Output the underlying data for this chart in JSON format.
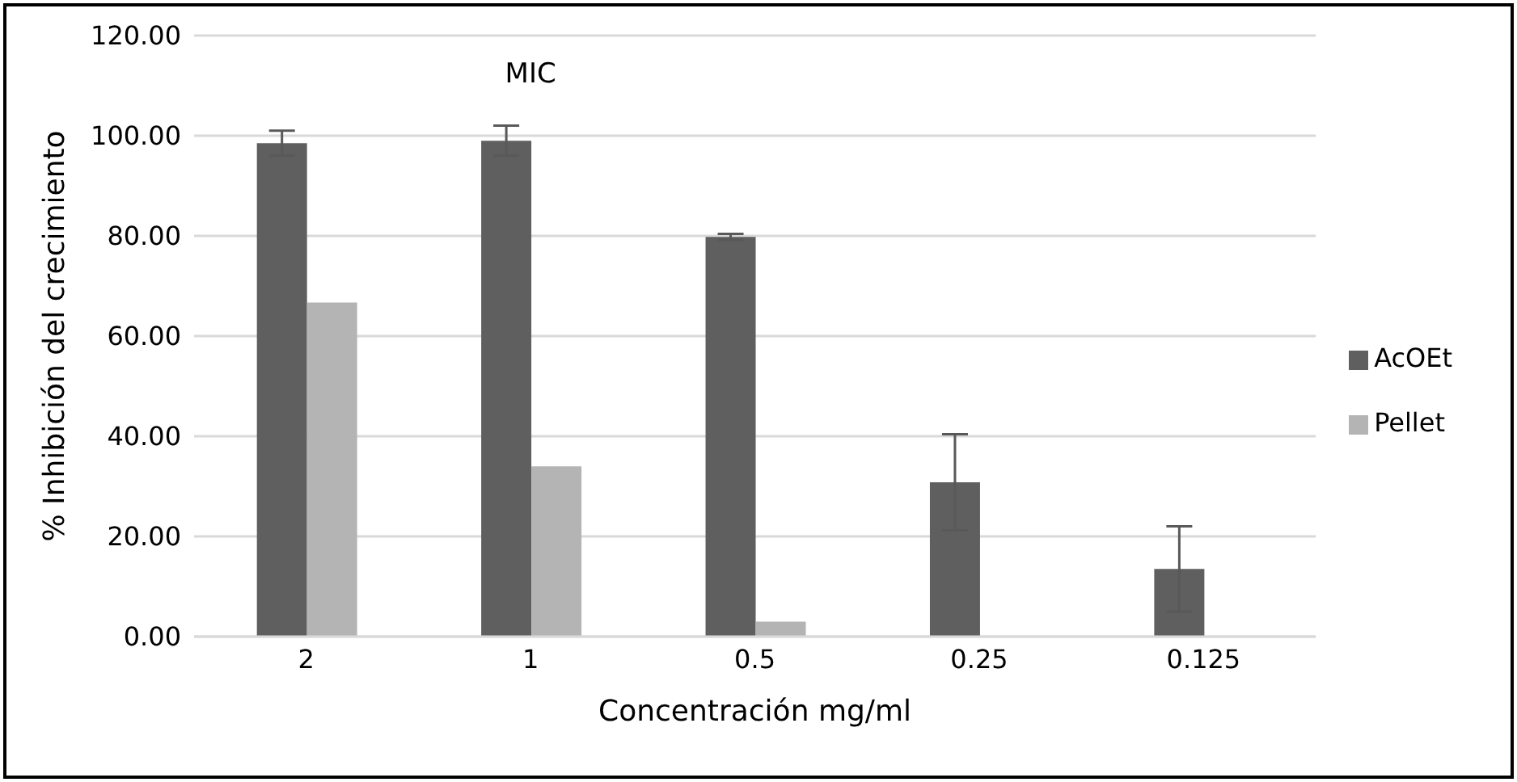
{
  "chart_data": {
    "type": "bar",
    "xlabel": "Concentración mg/ml",
    "ylabel": "% Inhibición del crecimiento",
    "categories": [
      "2",
      "1",
      "0.5",
      "0.25",
      "0.125"
    ],
    "series": [
      {
        "name": "AcOEt",
        "color": "#5f5f5f",
        "values": [
          98.5,
          99,
          79.8,
          30.8,
          13.5
        ],
        "errors": [
          2.5,
          3,
          0.6,
          9.6,
          8.5
        ]
      },
      {
        "name": "Pellet",
        "color": "#b4b4b4",
        "values": [
          66.7,
          34,
          3,
          null,
          null
        ]
      }
    ],
    "ylim": [
      0,
      120
    ],
    "yticks": [
      {
        "value": 0,
        "label": "0.00"
      },
      {
        "value": 20,
        "label": "20.00"
      },
      {
        "value": 40,
        "label": "40.00"
      },
      {
        "value": 60,
        "label": "60.00"
      },
      {
        "value": 80,
        "label": "80.00"
      },
      {
        "value": 100,
        "label": "100.00"
      },
      {
        "value": 120,
        "label": "120.00"
      }
    ],
    "annotations": [
      {
        "text": "MIC",
        "x": "1",
        "y": 99
      }
    ],
    "grid": "y",
    "legend": "right"
  }
}
